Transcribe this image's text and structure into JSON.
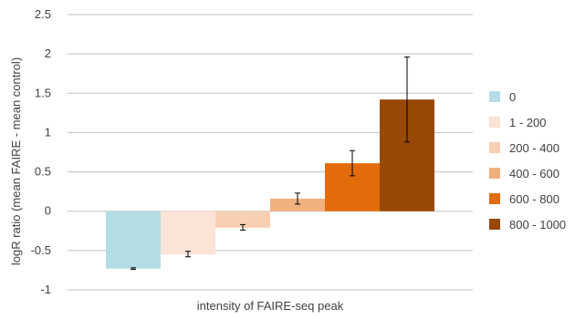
{
  "chart_data": {
    "type": "bar",
    "title": "",
    "xlabel": "intensity of FAIRE-seq peak",
    "ylabel": "logR ratio (mean FAIRE - mean control)",
    "ylim": [
      -1,
      2.5
    ],
    "yticks": [
      -1,
      -0.5,
      0,
      0.5,
      1,
      1.5,
      2,
      2.5
    ],
    "ytick_labels": [
      "-1",
      "-0.5",
      "0",
      "0.5",
      "1",
      "1.5",
      "2",
      "2.5"
    ],
    "grid": "horizontal",
    "legend_position": "right",
    "bars": [
      {
        "label": "0",
        "value": -0.73,
        "err_low": -0.74,
        "err_high": -0.72,
        "color": "#b4dde6"
      },
      {
        "label": "1 - 200",
        "value": -0.55,
        "err_low": -0.58,
        "err_high": -0.51,
        "color": "#fbe3d6"
      },
      {
        "label": "200 - 400",
        "value": -0.21,
        "err_low": -0.24,
        "err_high": -0.17,
        "color": "#f8cfb2"
      },
      {
        "label": "400 - 600",
        "value": 0.16,
        "err_low": 0.09,
        "err_high": 0.23,
        "color": "#f2b07e"
      },
      {
        "label": "600 - 800",
        "value": 0.61,
        "err_low": 0.45,
        "err_high": 0.77,
        "color": "#e36c0a"
      },
      {
        "label": "800 - 1000",
        "value": 1.42,
        "err_low": 0.88,
        "err_high": 1.96,
        "color": "#984807"
      }
    ]
  }
}
